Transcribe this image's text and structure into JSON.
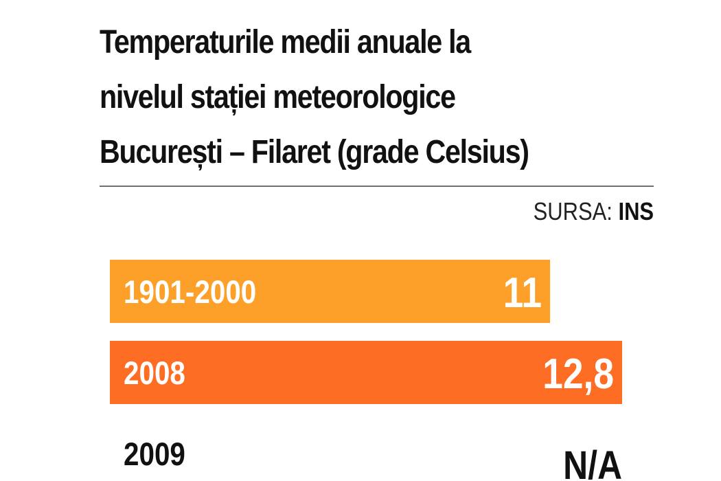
{
  "chart_data": {
    "type": "bar",
    "orientation": "horizontal",
    "title_lines": [
      "Temperaturile medii anuale la",
      "nivelul stației meteorologice",
      "București – Filaret (grade Celsius)"
    ],
    "source_label": "SURSA:",
    "source_value": "INS",
    "categories": [
      "1901-2000",
      "2008",
      "2009"
    ],
    "values": [
      11,
      12.8,
      null
    ],
    "value_labels": [
      "11",
      "12,8",
      "N/A"
    ],
    "bar_colors": [
      "#fca02a",
      "#fd6d23",
      null
    ],
    "xlim": [
      0,
      12.8
    ]
  }
}
